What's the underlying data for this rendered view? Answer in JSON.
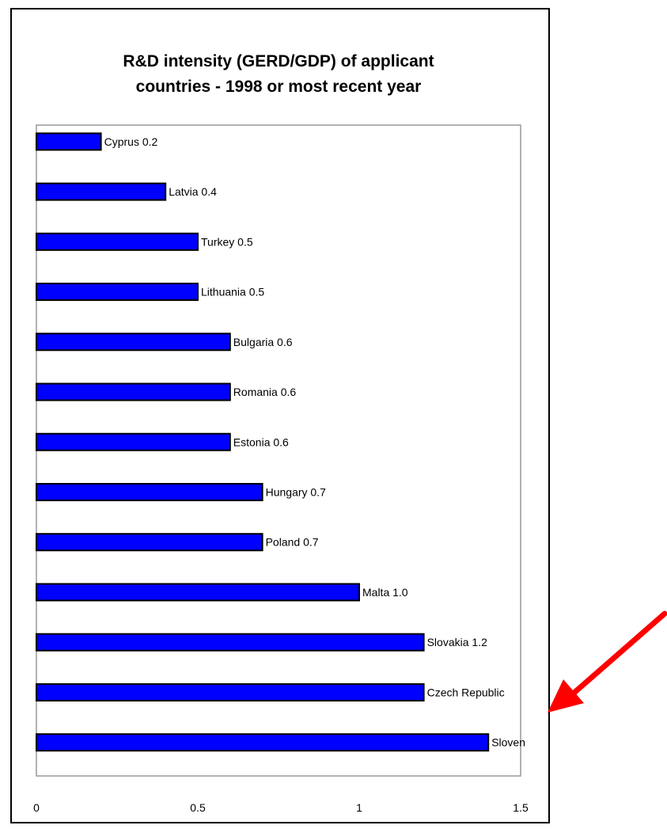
{
  "chart_data": {
    "type": "bar",
    "orientation": "horizontal",
    "title_lines": [
      "R&D intensity (GERD/GDP) of applicant",
      "countries  - 1998 or most recent year"
    ],
    "xlabel": "",
    "ylabel": "",
    "xlim": [
      0,
      1.5
    ],
    "x_ticks": [
      "0",
      "0.5",
      "1",
      "1.5"
    ],
    "x_tick_values": [
      0,
      0.5,
      1,
      1.5
    ],
    "grid": false,
    "legend": "none",
    "bar_color": "#0000ff",
    "bar_outline": "#000000",
    "annotation": {
      "type": "arrow",
      "color": "#ff0000",
      "target": "Czech Republic"
    },
    "bars": [
      {
        "value": 0.2,
        "label": "Cyprus 0.2"
      },
      {
        "value": 0.4,
        "label": "Latvia 0.4"
      },
      {
        "value": 0.5,
        "label": "Turkey 0.5"
      },
      {
        "value": 0.5,
        "label": "Lithuania 0.5"
      },
      {
        "value": 0.6,
        "label": "Bulgaria 0.6"
      },
      {
        "value": 0.6,
        "label": "Romania 0.6"
      },
      {
        "value": 0.6,
        "label": "Estonia 0.6"
      },
      {
        "value": 0.7,
        "label": "Hungary 0.7"
      },
      {
        "value": 0.7,
        "label": "Poland 0.7"
      },
      {
        "value": 1.0,
        "label": "Malta 1.0"
      },
      {
        "value": 1.2,
        "label": "Slovakia 1.2"
      },
      {
        "value": 1.2,
        "label": "Czech Republic"
      },
      {
        "value": 1.4,
        "label": "Sloven"
      }
    ]
  }
}
